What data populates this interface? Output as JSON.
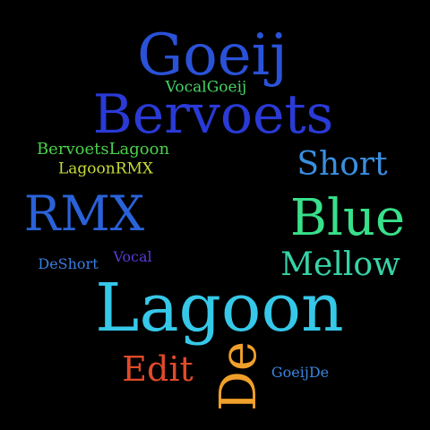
{
  "canvas": {
    "background": "#000000"
  },
  "words": [
    {
      "id": "goeij",
      "text": "Goeij",
      "color": "#2a52d8"
    },
    {
      "id": "vocalgoeij",
      "text": "VocalGoeij",
      "color": "#46d268"
    },
    {
      "id": "bervoets",
      "text": "Bervoets",
      "color": "#2a3ad6"
    },
    {
      "id": "bervoetslagoon",
      "text": "BervoetsLagoon",
      "color": "#4ad24a"
    },
    {
      "id": "lagoonrmx",
      "text": "LagoonRMX",
      "color": "#c8dc3a"
    },
    {
      "id": "short",
      "text": "Short",
      "color": "#3a8fe0"
    },
    {
      "id": "rmx",
      "text": "RMX",
      "color": "#2a62d8"
    },
    {
      "id": "blue",
      "text": "Blue",
      "color": "#38e08a"
    },
    {
      "id": "deshort",
      "text": "DeShort",
      "color": "#3a7ee0"
    },
    {
      "id": "vocal",
      "text": "Vocal",
      "color": "#5a3ad6"
    },
    {
      "id": "mellow",
      "text": "Mellow",
      "color": "#36d4a8"
    },
    {
      "id": "lagoon",
      "text": "Lagoon",
      "color": "#36c8e8"
    },
    {
      "id": "edit",
      "text": "Edit",
      "color": "#e04a2a"
    },
    {
      "id": "de",
      "text": "De",
      "color": "#f0a02a"
    },
    {
      "id": "goeijde",
      "text": "GoeijDe",
      "color": "#3a86e0"
    }
  ]
}
